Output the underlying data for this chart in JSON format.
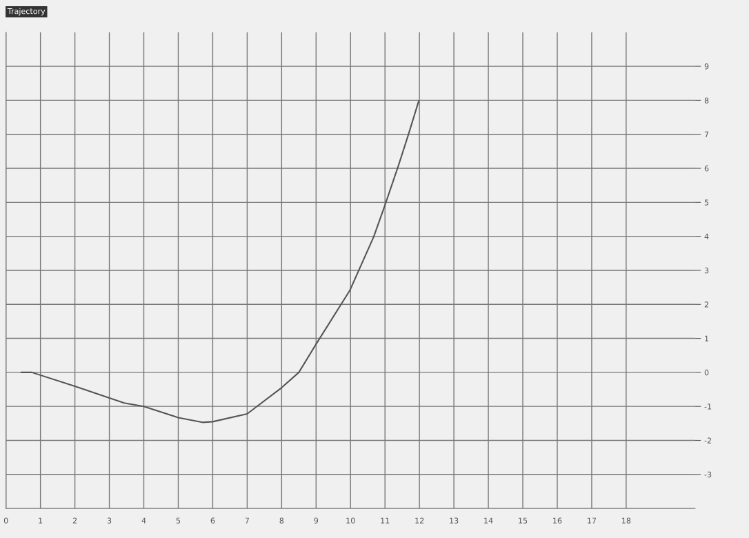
{
  "chart_data": {
    "type": "line",
    "title": "Trajectory",
    "series": [
      {
        "color": "#555555",
        "x": [
          0.44,
          0.75,
          2,
          3.43,
          4,
          5,
          5.7,
          6,
          7,
          8,
          8.5,
          8.97,
          9.98,
          10.67,
          11,
          11.39,
          11.67,
          11.98
        ],
        "values": [
          0,
          0,
          -0.41,
          -0.9,
          -1.0,
          -1.33,
          -1.47,
          -1.45,
          -1.22,
          -0.45,
          0,
          0.78,
          2.41,
          3.98,
          4.92,
          6.08,
          6.96,
          7.98
        ]
      }
    ],
    "xlim": [
      0,
      20
    ],
    "xticks": [
      0,
      1,
      2,
      3,
      4,
      5,
      6,
      7,
      8,
      9,
      10,
      11,
      12,
      13,
      14,
      15,
      16,
      17,
      18
    ],
    "ylim": [
      -4,
      10
    ],
    "yticks": [
      -3,
      -2,
      -1,
      0,
      1,
      2,
      3,
      4,
      5,
      6,
      7,
      8,
      9
    ],
    "grid": true,
    "marker": "none",
    "line_style": "solid"
  }
}
